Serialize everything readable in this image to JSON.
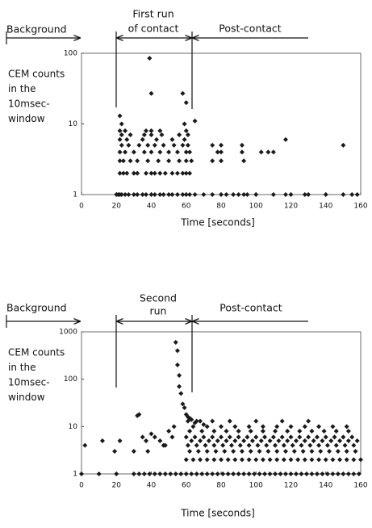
{
  "chart_data": [
    {
      "type": "scatter",
      "log_y": true,
      "color": "#1a1a1a",
      "annotations": [
        "Background",
        "First run",
        "of contact",
        "Post-contact"
      ],
      "ylabel": [
        "CEM counts",
        "in the",
        "10msec-",
        "window"
      ],
      "xlabel": "Time [seconds]",
      "xlim": [
        0,
        160
      ],
      "xticks": [
        0,
        20,
        40,
        60,
        80,
        100,
        120,
        140,
        160
      ],
      "ylim": [
        1,
        100
      ],
      "yticks": [
        1,
        10,
        100
      ],
      "x": [
        20,
        21,
        22,
        23,
        25,
        27,
        30,
        32,
        35,
        37,
        40,
        42,
        45,
        47,
        50,
        52,
        55,
        58,
        60,
        62,
        65,
        70,
        75,
        80,
        83,
        87,
        90,
        93,
        95,
        100,
        110,
        117,
        120,
        128,
        130,
        140,
        150,
        155,
        158,
        22,
        24,
        26,
        30,
        32,
        37,
        40,
        42,
        45,
        48,
        52,
        55,
        58,
        60,
        62,
        22,
        24,
        28,
        32,
        38,
        44,
        50,
        56,
        60,
        63,
        75,
        80,
        93,
        22,
        25,
        30,
        36,
        40,
        45,
        50,
        55,
        60,
        62,
        78,
        80,
        92,
        103,
        107,
        110,
        23,
        27,
        33,
        38,
        42,
        47,
        53,
        58,
        61,
        75,
        80,
        92,
        150,
        22,
        26,
        35,
        43,
        52,
        59,
        117,
        23,
        28,
        36,
        40,
        46,
        56,
        61,
        22,
        25,
        37,
        40,
        45,
        60,
        23,
        59,
        65,
        22,
        60,
        40,
        58,
        39
      ],
      "values": [
        1,
        1,
        1,
        1,
        1,
        1,
        1,
        1,
        1,
        1,
        1,
        1,
        1,
        1,
        1,
        1,
        1,
        1,
        1,
        1,
        1,
        1,
        1,
        1,
        1,
        1,
        1,
        1,
        1,
        1,
        1,
        1,
        1,
        1,
        1,
        1,
        1,
        1,
        1,
        2,
        2,
        2,
        2,
        2,
        2,
        2,
        2,
        2,
        2,
        2,
        2,
        2,
        2,
        2,
        3,
        3,
        3,
        3,
        3,
        3,
        3,
        3,
        3,
        3,
        3,
        3,
        3,
        4,
        4,
        4,
        4,
        4,
        4,
        4,
        4,
        4,
        4,
        4,
        4,
        4,
        4,
        4,
        4,
        5,
        5,
        5,
        5,
        5,
        5,
        5,
        5,
        5,
        5,
        5,
        5,
        5,
        6,
        6,
        6,
        6,
        6,
        6,
        6,
        7,
        7,
        7,
        7,
        7,
        7,
        7,
        8,
        8,
        8,
        8,
        8,
        8,
        10,
        10,
        11,
        13,
        20,
        27,
        27,
        85
      ]
    },
    {
      "type": "scatter",
      "log_y": true,
      "color": "#1a1a1a",
      "annotations": [
        "Background",
        "Second",
        "run",
        "Post-contact"
      ],
      "ylabel": [
        "CEM counts",
        "in the",
        "10msec-",
        "window"
      ],
      "xlabel": "Time [seconds]",
      "xlim": [
        0,
        160
      ],
      "xticks": [
        0,
        20,
        40,
        60,
        80,
        100,
        120,
        140,
        160
      ],
      "ylim": [
        1,
        1000
      ],
      "yticks": [
        1,
        10,
        100,
        1000
      ],
      "x": [
        0,
        10,
        20,
        30,
        33,
        36,
        39,
        42,
        45,
        48,
        51,
        54,
        57,
        60,
        63,
        66,
        69,
        72,
        75,
        78,
        81,
        84,
        87,
        90,
        93,
        96,
        99,
        102,
        105,
        108,
        111,
        114,
        117,
        120,
        123,
        126,
        129,
        132,
        135,
        138,
        141,
        144,
        147,
        150,
        153,
        156,
        159,
        60,
        64,
        68,
        72,
        76,
        80,
        84,
        88,
        92,
        96,
        100,
        104,
        108,
        112,
        116,
        120,
        124,
        128,
        132,
        136,
        140,
        144,
        148,
        152,
        156,
        160,
        62,
        67,
        72,
        77,
        82,
        87,
        92,
        97,
        102,
        107,
        112,
        117,
        122,
        127,
        132,
        137,
        142,
        147,
        152,
        157,
        61,
        66,
        71,
        76,
        81,
        86,
        91,
        96,
        101,
        106,
        111,
        116,
        121,
        126,
        131,
        136,
        141,
        146,
        151,
        156,
        63,
        68,
        73,
        78,
        83,
        88,
        93,
        98,
        103,
        108,
        113,
        118,
        123,
        128,
        133,
        138,
        143,
        148,
        153,
        158,
        60,
        65,
        70,
        75,
        80,
        85,
        90,
        95,
        100,
        105,
        110,
        115,
        120,
        125,
        130,
        135,
        140,
        145,
        150,
        155,
        62,
        69,
        76,
        83,
        90,
        97,
        104,
        111,
        118,
        125,
        132,
        139,
        146,
        153,
        64,
        72,
        80,
        88,
        96,
        104,
        112,
        120,
        128,
        136,
        144,
        152,
        61,
        66,
        75,
        85,
        100,
        115,
        130,
        54,
        55,
        55,
        56,
        56,
        57,
        58,
        59,
        60,
        61,
        62,
        63,
        65,
        68,
        70,
        2,
        12,
        19,
        22,
        30,
        32,
        33,
        35,
        37,
        38,
        40,
        42,
        45,
        47,
        48,
        50,
        52,
        53
      ],
      "values": [
        1,
        1,
        1,
        1,
        1,
        1,
        1,
        1,
        1,
        1,
        1,
        1,
        1,
        1,
        1,
        1,
        1,
        1,
        1,
        1,
        1,
        1,
        1,
        1,
        1,
        1,
        1,
        1,
        1,
        1,
        1,
        1,
        1,
        1,
        1,
        1,
        1,
        1,
        1,
        1,
        1,
        1,
        1,
        1,
        1,
        1,
        1,
        2,
        2,
        2,
        2,
        2,
        2,
        2,
        2,
        2,
        2,
        2,
        2,
        2,
        2,
        2,
        2,
        2,
        2,
        2,
        2,
        2,
        2,
        2,
        2,
        2,
        2,
        3,
        3,
        3,
        3,
        3,
        3,
        3,
        3,
        3,
        3,
        3,
        3,
        3,
        3,
        3,
        3,
        3,
        3,
        3,
        3,
        4,
        4,
        4,
        4,
        4,
        4,
        4,
        4,
        4,
        4,
        4,
        4,
        4,
        4,
        4,
        4,
        4,
        4,
        4,
        4,
        5,
        5,
        5,
        5,
        5,
        5,
        5,
        5,
        5,
        5,
        5,
        5,
        5,
        5,
        5,
        5,
        5,
        5,
        5,
        5,
        6,
        6,
        6,
        6,
        6,
        6,
        6,
        6,
        6,
        6,
        6,
        6,
        6,
        6,
        6,
        6,
        6,
        6,
        6,
        6,
        8,
        8,
        8,
        8,
        8,
        8,
        8,
        8,
        8,
        8,
        8,
        8,
        8,
        8,
        10,
        10,
        10,
        10,
        10,
        10,
        10,
        10,
        10,
        10,
        10,
        10,
        13,
        13,
        13,
        13,
        13,
        13,
        13,
        600,
        400,
        200,
        120,
        70,
        50,
        30,
        25,
        18,
        16,
        15,
        14,
        12,
        13,
        11,
        4,
        5,
        3,
        5,
        3,
        17,
        18,
        6,
        5,
        3,
        7,
        6,
        5,
        4,
        4,
        8,
        6,
        10
      ]
    }
  ]
}
